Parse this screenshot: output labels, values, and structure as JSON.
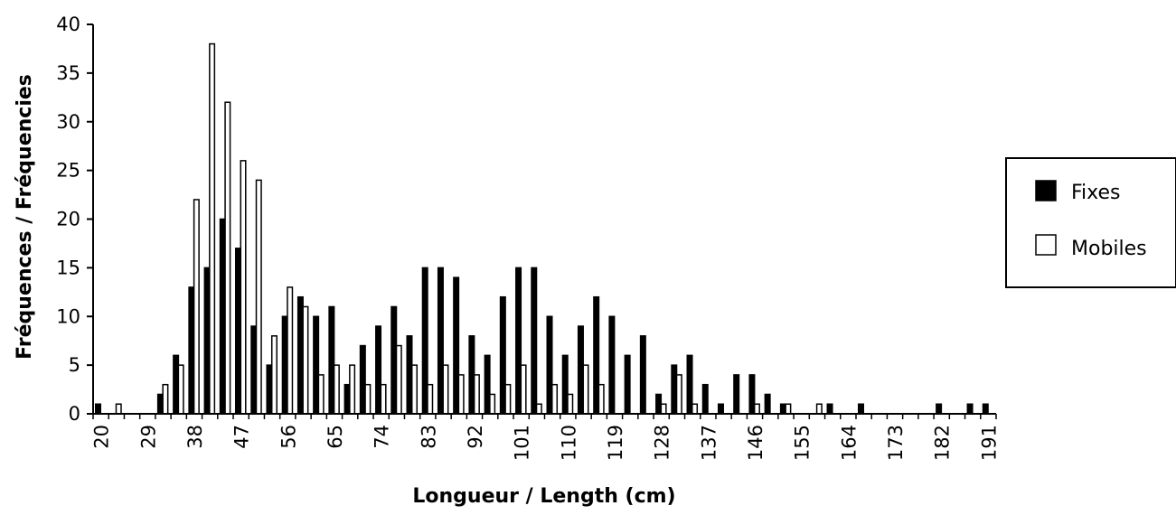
{
  "chart_data": {
    "type": "bar",
    "xlabel": "Longueur / Length (cm)",
    "ylabel": "Fréquences / Fréquencies",
    "ylim": [
      0,
      40
    ],
    "yticks": [
      0,
      5,
      10,
      15,
      20,
      25,
      30,
      35,
      40
    ],
    "xtick_labels": [
      "20",
      "29",
      "38",
      "47",
      "56",
      "65",
      "74",
      "83",
      "92",
      "101",
      "110",
      "119",
      "128",
      "137",
      "146",
      "155",
      "164",
      "173",
      "182",
      "191"
    ],
    "categories": [
      20,
      23,
      26,
      29,
      32,
      35,
      38,
      41,
      44,
      47,
      50,
      53,
      56,
      59,
      62,
      65,
      68,
      71,
      74,
      77,
      80,
      83,
      86,
      89,
      92,
      95,
      98,
      101,
      104,
      107,
      110,
      113,
      116,
      119,
      122,
      125,
      128,
      131,
      134,
      137,
      140,
      143,
      146,
      149,
      152,
      155,
      158,
      161,
      164,
      167,
      170,
      173,
      176,
      179,
      182,
      185,
      188,
      191
    ],
    "legend": {
      "position": "right"
    },
    "series": [
      {
        "name": "Fixes",
        "color": "#000000",
        "values": [
          1,
          0,
          0,
          0,
          2,
          6,
          13,
          15,
          20,
          17,
          9,
          5,
          10,
          12,
          10,
          11,
          3,
          7,
          9,
          11,
          8,
          15,
          15,
          14,
          8,
          6,
          12,
          15,
          15,
          10,
          6,
          9,
          12,
          10,
          6,
          8,
          2,
          5,
          6,
          3,
          1,
          4,
          4,
          2,
          1,
          0,
          0,
          1,
          0,
          1,
          0,
          0,
          0,
          0,
          1,
          0,
          1,
          1
        ]
      },
      {
        "name": "Mobiles",
        "color": "#ffffff",
        "values": [
          0,
          1,
          0,
          0,
          3,
          5,
          22,
          38,
          32,
          26,
          24,
          8,
          13,
          11,
          4,
          5,
          5,
          3,
          3,
          7,
          5,
          3,
          5,
          4,
          4,
          2,
          3,
          5,
          1,
          3,
          2,
          5,
          3,
          0,
          0,
          0,
          1,
          4,
          1,
          0,
          0,
          0,
          1,
          0,
          1,
          0,
          1,
          0,
          0,
          0,
          0,
          0,
          0,
          0,
          0,
          0,
          0,
          0
        ]
      }
    ]
  }
}
